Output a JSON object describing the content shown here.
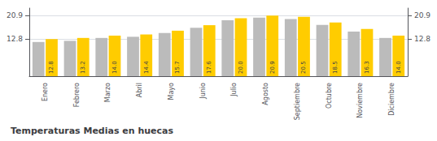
{
  "chart_data": {
    "type": "bar",
    "title": "Temperaturas Medias en huecas",
    "categories": [
      "Enero",
      "Febrero",
      "Marzo",
      "Abril",
      "Mayo",
      "Junio",
      "Julio",
      "Agosto",
      "Septiembre",
      "Octubre",
      "Noviembre",
      "Diciembre"
    ],
    "series": [
      {
        "color": "#BBBBBB",
        "values": [
          11.8,
          12.2,
          13.2,
          13.6,
          14.9,
          16.7,
          19.3,
          20.2,
          19.7,
          17.7,
          15.4,
          13.2
        ]
      },
      {
        "color": "#FFCC00",
        "values": [
          12.8,
          13.2,
          14.0,
          14.4,
          15.7,
          17.6,
          20.0,
          20.9,
          20.5,
          18.5,
          16.3,
          14.0
        ],
        "data_labels": true,
        "value_labels": [
          "12.8",
          "13.2",
          "14.0",
          "14.4",
          "15.7",
          "17.6",
          "20.0",
          "20.9",
          "20.5",
          "18.5",
          "16.3",
          "14.0"
        ]
      }
    ],
    "ylim": [
      0.0,
      23.5
    ],
    "yticks": [
      12.8,
      20.9
    ],
    "y2lim": [
      0.0,
      23.5
    ],
    "y2ticks": [
      12.8,
      20.9
    ],
    "grid": true
  }
}
